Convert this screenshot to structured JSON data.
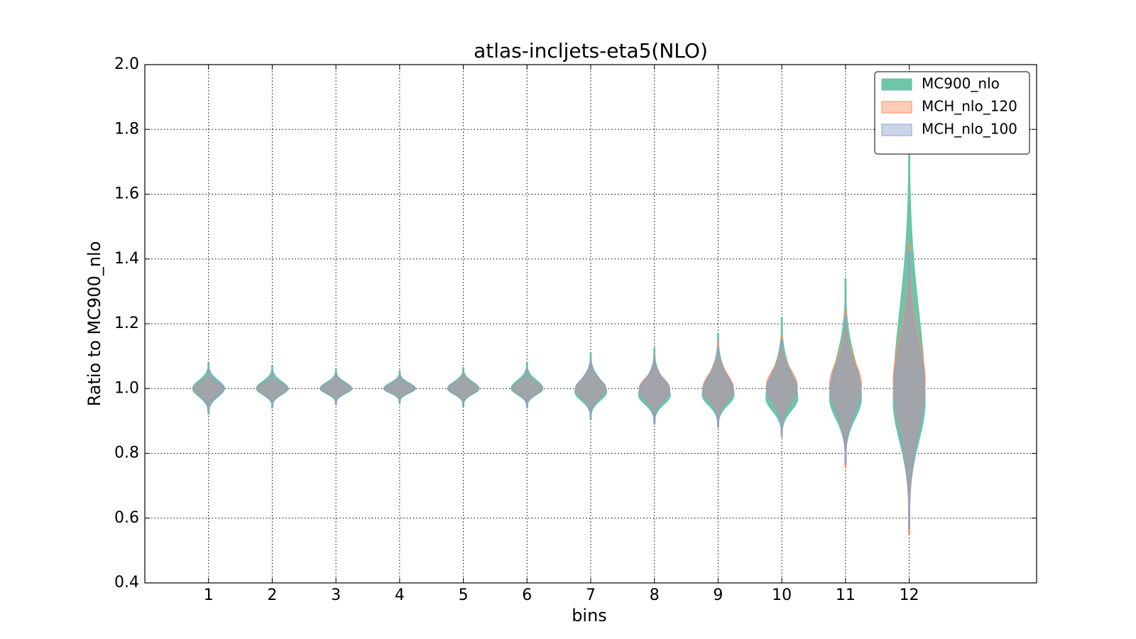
{
  "chart_data": {
    "type": "violin",
    "title": "atlas-incljets-eta5(NLO)",
    "xlabel": "bins",
    "ylabel": "Ratio to MC900_nlo",
    "x": [
      1,
      2,
      3,
      4,
      5,
      6,
      7,
      8,
      9,
      10,
      11,
      12
    ],
    "xlim": [
      0,
      14
    ],
    "xticks": [
      1,
      2,
      3,
      4,
      5,
      6,
      7,
      8,
      9,
      10,
      11,
      12
    ],
    "ylim": [
      0.4,
      2.0
    ],
    "yticks": [
      {
        "value": 0.4,
        "label": "0.4"
      },
      {
        "value": 0.6,
        "label": "0.6"
      },
      {
        "value": 0.8,
        "label": "0.8"
      },
      {
        "value": 1.0,
        "label": "1.0"
      },
      {
        "value": 1.2,
        "label": "1.2"
      },
      {
        "value": 1.4,
        "label": "1.4"
      },
      {
        "value": 1.6,
        "label": "1.6"
      },
      {
        "value": 1.8,
        "label": "1.8"
      },
      {
        "value": 2.0,
        "label": "2.0"
      }
    ],
    "grid": true,
    "legend": "upper right",
    "series": [
      {
        "name": "MC900_nlo",
        "color": "#66c2a5",
        "min": [
          0.92,
          0.94,
          0.95,
          0.955,
          0.945,
          0.94,
          0.905,
          0.89,
          0.88,
          0.85,
          0.77,
          0.57
        ],
        "max": [
          1.08,
          1.07,
          1.06,
          1.055,
          1.065,
          1.08,
          1.11,
          1.125,
          1.17,
          1.22,
          1.34,
          1.84
        ],
        "mode": [
          1.0,
          1.0,
          1.0,
          1.0,
          1.0,
          1.0,
          0.99,
          0.98,
          0.98,
          0.97,
          0.97,
          0.96
        ],
        "width": [
          0.25,
          0.25,
          0.25,
          0.25,
          0.25,
          0.25,
          0.25,
          0.25,
          0.25,
          0.25,
          0.25,
          0.25
        ]
      },
      {
        "name": "MCH_nlo_120",
        "color": "#fc8d62",
        "min": [
          0.93,
          0.945,
          0.955,
          0.96,
          0.95,
          0.945,
          0.91,
          0.895,
          0.885,
          0.855,
          0.76,
          0.55
        ],
        "max": [
          1.06,
          1.05,
          1.05,
          1.045,
          1.055,
          1.06,
          1.09,
          1.1,
          1.14,
          1.16,
          1.24,
          1.45
        ],
        "mode": [
          1.0,
          1.0,
          1.0,
          1.0,
          1.0,
          1.0,
          1.0,
          1.0,
          1.0,
          1.01,
          1.01,
          1.02
        ],
        "width": [
          0.24,
          0.24,
          0.24,
          0.24,
          0.24,
          0.24,
          0.24,
          0.24,
          0.24,
          0.24,
          0.25,
          0.25
        ]
      },
      {
        "name": "MCH_nlo_100",
        "color": "#8da0cb",
        "min": [
          0.93,
          0.945,
          0.955,
          0.96,
          0.95,
          0.945,
          0.91,
          0.895,
          0.885,
          0.86,
          0.77,
          0.57
        ],
        "max": [
          1.06,
          1.05,
          1.05,
          1.045,
          1.055,
          1.06,
          1.09,
          1.1,
          1.13,
          1.15,
          1.22,
          1.42
        ],
        "mode": [
          1.0,
          1.0,
          1.0,
          1.0,
          1.0,
          1.0,
          1.0,
          0.995,
          0.995,
          1.0,
          1.0,
          1.0
        ],
        "width": [
          0.24,
          0.24,
          0.24,
          0.24,
          0.24,
          0.24,
          0.24,
          0.24,
          0.24,
          0.24,
          0.24,
          0.24
        ]
      }
    ]
  }
}
